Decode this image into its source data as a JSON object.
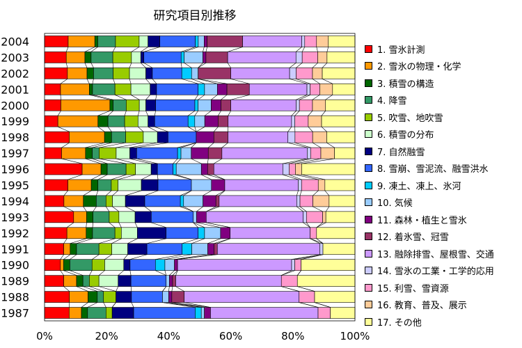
{
  "chart_data": {
    "type": "bar",
    "orientation": "horizontal",
    "stacked": "percent",
    "title": "研究項目別推移",
    "categories": [
      "2004",
      "2003",
      "2002",
      "2001",
      "2000",
      "1999",
      "1998",
      "1997",
      "1996",
      "1995",
      "1994",
      "1993",
      "1992",
      "1991",
      "1990",
      "1989",
      "1988",
      "1987"
    ],
    "xlim": [
      0,
      100
    ],
    "xticks": [
      "0%",
      "20%",
      "40%",
      "60%",
      "80%",
      "100%"
    ],
    "grid": false,
    "legend_position": "right",
    "series": [
      {
        "name": "1. 雪氷計測",
        "color": "#ff0000",
        "values": [
          8,
          7,
          7,
          5,
          5,
          4,
          7,
          5,
          12,
          7,
          6,
          9,
          7,
          6,
          5,
          6,
          8,
          8
        ]
      },
      {
        "name": "2. 雪氷の物理・化学",
        "color": "#ff9900",
        "values": [
          9,
          6,
          6,
          9,
          15,
          12,
          10,
          7,
          6,
          7,
          6,
          4,
          6,
          2,
          1,
          4,
          6,
          4
        ]
      },
      {
        "name": "3. 積雪の構造",
        "color": "#006600",
        "values": [
          1,
          2,
          2,
          1,
          1,
          3,
          2,
          2,
          2,
          2,
          4,
          2,
          2,
          2,
          2,
          2,
          3,
          2
        ]
      },
      {
        "name": "4. 降雪",
        "color": "#339966",
        "values": [
          6,
          7,
          6,
          7,
          4,
          5,
          4,
          2,
          6,
          4,
          3,
          5,
          7,
          7,
          7,
          2,
          2,
          6
        ]
      },
      {
        "name": "5. 吹雪、地吹雪",
        "color": "#99cc00",
        "values": [
          8,
          6,
          5,
          5,
          4,
          4,
          5,
          5,
          3,
          2,
          2,
          3,
          2,
          4,
          4,
          3,
          4,
          2
        ]
      },
      {
        "name": "6. 積雪の分布",
        "color": "#ccffcc",
        "values": [
          3,
          3,
          5,
          6,
          2,
          3,
          4,
          4,
          5,
          7,
          4,
          5,
          5,
          5,
          6,
          6,
          0,
          0
        ]
      },
      {
        "name": "7. 自然融雪",
        "color": "#000080",
        "values": [
          4,
          1,
          2,
          2,
          3,
          2,
          3,
          2,
          2,
          5,
          6,
          5,
          9,
          6,
          2,
          4,
          5,
          7
        ]
      },
      {
        "name": "8. 雪崩、雪泥流、融雪洪水",
        "color": "#3366ff",
        "values": [
          12,
          12,
          9,
          13,
          12,
          10,
          8,
          12,
          5,
          10,
          11,
          13,
          10,
          11,
          8,
          11,
          10,
          20
        ]
      },
      {
        "name": "9. 凍土、凍上、氷河",
        "color": "#00ccff",
        "values": [
          1,
          1,
          3,
          2,
          1,
          2,
          0,
          1,
          1,
          0,
          1,
          0,
          2,
          3,
          3,
          0,
          0,
          2
        ]
      },
      {
        "name": "10. 気候",
        "color": "#99ccff",
        "values": [
          2,
          6,
          2,
          4,
          4,
          3,
          0,
          3,
          8,
          6,
          6,
          1,
          5,
          5,
          3,
          1,
          2,
          1
        ]
      },
      {
        "name": "11. 森林・植生と雪氷",
        "color": "#800080",
        "values": [
          1,
          1,
          0,
          3,
          3,
          4,
          5,
          5,
          2,
          4,
          4,
          3,
          3,
          2,
          1,
          1,
          1,
          2
        ]
      },
      {
        "name": "12. 着氷雪、冠雪",
        "color": "#993366",
        "values": [
          12,
          7,
          10,
          7,
          3,
          3,
          4,
          4,
          2,
          0,
          1,
          0,
          0,
          1,
          0,
          1,
          4,
          0
        ]
      },
      {
        "name": "13. 融除排雪、屋根雪、交通",
        "color": "#cc99ff",
        "values": [
          20,
          22,
          18,
          18,
          20,
          19,
          17,
          25,
          22,
          22,
          24,
          30,
          25,
          32,
          36,
          33,
          37,
          35
        ]
      },
      {
        "name": "14. 雪氷の工業・工学的応用",
        "color": "#ccccff",
        "values": [
          1,
          2,
          2,
          1,
          1,
          1,
          2,
          1,
          2,
          1,
          1,
          1,
          0,
          1,
          1,
          0,
          0,
          0
        ]
      },
      {
        "name": "15. 利雪、雪資源",
        "color": "#ff99cc",
        "values": [
          4,
          5,
          5,
          3,
          4,
          4,
          5,
          3,
          2,
          5,
          4,
          5,
          2,
          0,
          2,
          5,
          5,
          4
        ]
      },
      {
        "name": "16. 教育、普及、展示",
        "color": "#ffcc99",
        "values": [
          4,
          3,
          3,
          4,
          4,
          4,
          4,
          4,
          2,
          2,
          5,
          1,
          0,
          0,
          0,
          0,
          0,
          0
        ]
      },
      {
        "name": "17. その他",
        "color": "#ffff99",
        "values": [
          9,
          9,
          10,
          7,
          9,
          10,
          8,
          6,
          17,
          9,
          8,
          9,
          12,
          10,
          17,
          18,
          13,
          8
        ]
      }
    ]
  }
}
